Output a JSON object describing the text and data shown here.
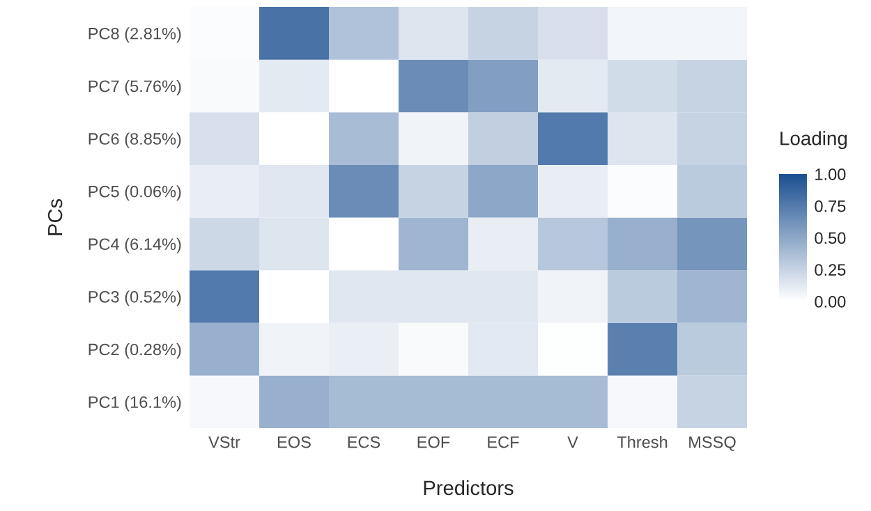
{
  "chart_data": {
    "type": "heatmap",
    "xlabel": "Predictors",
    "ylabel": "PCs",
    "clabel": "Loading",
    "categories": [
      "VStr",
      "EOS",
      "ECS",
      "EOF",
      "ECF",
      "V",
      "Thresh",
      "MSSQ"
    ],
    "y_categories": [
      "PC8 (2.81%)",
      "PC7 (5.76%)",
      "PC6 (8.85%)",
      "PC5 (0.06%)",
      "PC4 (6.14%)",
      "PC3 (0.52%)",
      "PC2 (0.28%)",
      "PC1 (16.1%)"
    ],
    "cells": [
      [
        0.02,
        0.8,
        0.35,
        0.15,
        0.25,
        0.18,
        0.06,
        0.06
      ],
      [
        0.03,
        0.12,
        0.0,
        0.65,
        0.55,
        0.12,
        0.2,
        0.25
      ],
      [
        0.18,
        0.0,
        0.38,
        0.07,
        0.27,
        0.75,
        0.15,
        0.25
      ],
      [
        0.1,
        0.14,
        0.65,
        0.25,
        0.5,
        0.1,
        0.02,
        0.3
      ],
      [
        0.22,
        0.15,
        0.0,
        0.42,
        0.1,
        0.32,
        0.45,
        0.6
      ],
      [
        0.75,
        0.0,
        0.14,
        0.14,
        0.14,
        0.07,
        0.3,
        0.42
      ],
      [
        0.45,
        0.07,
        0.09,
        0.03,
        0.13,
        0.01,
        0.72,
        0.3
      ],
      [
        0.04,
        0.45,
        0.39,
        0.39,
        0.39,
        0.39,
        0.04,
        0.25
      ]
    ],
    "colors": [
      "#ffffff",
      "#1b4f91"
    ],
    "clim": [
      0,
      1
    ],
    "cticks": [
      {
        "value": 0,
        "label": "0.00"
      },
      {
        "value": 0.25,
        "label": "0.25"
      },
      {
        "value": 0.5,
        "label": "0.50"
      },
      {
        "value": 0.75,
        "label": "0.75"
      },
      {
        "value": 1,
        "label": "1.00"
      }
    ]
  }
}
